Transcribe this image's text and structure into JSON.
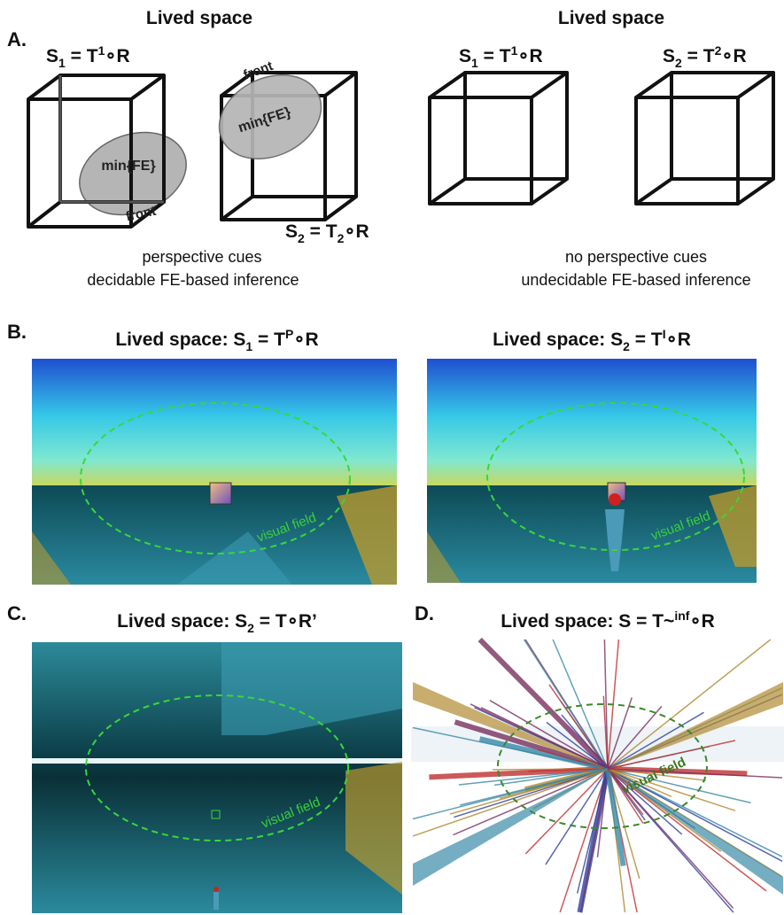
{
  "panel_a": {
    "label": "A.",
    "left": {
      "title": "Lived space",
      "formula1": [
        {
          "text": "S"
        },
        {
          "text": "1",
          "pos": "sub"
        },
        {
          "text": " = T"
        },
        {
          "text": "1",
          "pos": "sup"
        },
        {
          "text": "∘R"
        }
      ],
      "formula2": [
        {
          "text": "S"
        },
        {
          "text": "2",
          "pos": "sub"
        },
        {
          "text": " = T"
        },
        {
          "text": "2",
          "pos": "sub"
        },
        {
          "text": "∘R"
        }
      ],
      "cube1": {
        "ellipse": "min{FE}",
        "front": "front"
      },
      "cube2": {
        "ellipse": "min{FE}",
        "front": "front"
      },
      "caption": [
        "perspective cues",
        "decidable FE-based inference"
      ]
    },
    "right": {
      "title": "Lived space",
      "formula1": [
        {
          "text": "S"
        },
        {
          "text": "1",
          "pos": "sub"
        },
        {
          "text": " = T"
        },
        {
          "text": "1",
          "pos": "sup"
        },
        {
          "text": "∘R"
        }
      ],
      "formula2": [
        {
          "text": "S"
        },
        {
          "text": "2",
          "pos": "sub"
        },
        {
          "text": " = T"
        },
        {
          "text": "2",
          "pos": "sup"
        },
        {
          "text": "∘R"
        }
      ],
      "caption": [
        "no perspective cues",
        "undecidable FE-based inference"
      ]
    }
  },
  "panel_b": {
    "label": "B.",
    "left": {
      "title": [
        {
          "text": "Lived space: S"
        },
        {
          "text": "1",
          "pos": "sub"
        },
        {
          "text": " = T"
        },
        {
          "text": "P",
          "pos": "sup"
        },
        {
          "text": "∘R"
        }
      ],
      "annotation": "visual field"
    },
    "right": {
      "title": [
        {
          "text": "Lived space: S"
        },
        {
          "text": "2",
          "pos": "sub"
        },
        {
          "text": " = T"
        },
        {
          "text": "I",
          "pos": "sup"
        },
        {
          "text": "∘R"
        }
      ],
      "annotation": "visual field"
    }
  },
  "panel_c": {
    "label": "C.",
    "title": [
      {
        "text": "Lived space: S"
      },
      {
        "text": "2",
        "pos": "sub"
      },
      {
        "text": " = T∘R’"
      }
    ],
    "annotation": "visual field"
  },
  "panel_d": {
    "label": "D.",
    "title": [
      {
        "text": "Lived space: S = T~"
      },
      {
        "text": "inf",
        "pos": "sup"
      },
      {
        "text": "∘R"
      }
    ],
    "annotation": "visual field"
  }
}
